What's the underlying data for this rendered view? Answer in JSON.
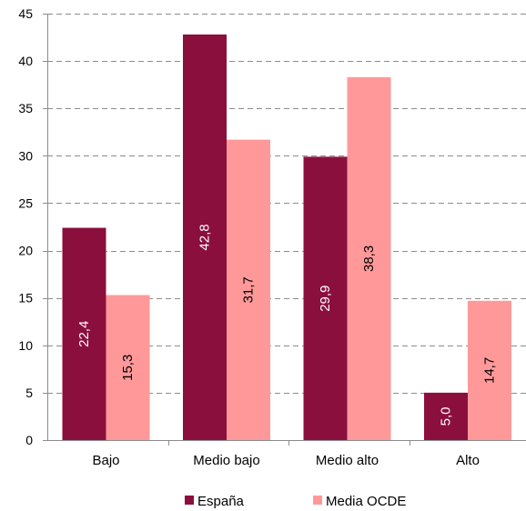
{
  "chart_data": {
    "type": "bar",
    "categories": [
      "Bajo",
      "Medio bajo",
      "Medio alto",
      "Alto"
    ],
    "series": [
      {
        "name": "España",
        "values": [
          22.4,
          42.8,
          29.9,
          5.0
        ],
        "labels": [
          "22,4",
          "42,8",
          "29,9",
          "5,0"
        ],
        "color": "#8b0f3d",
        "label_color": "#ffffff"
      },
      {
        "name": "Media OCDE",
        "values": [
          15.3,
          31.7,
          38.3,
          14.7
        ],
        "labels": [
          "15,3",
          "31,7",
          "38,3",
          "14,7"
        ],
        "color": "#ff9999",
        "label_color": "#000000"
      }
    ],
    "title": "",
    "xlabel": "",
    "ylabel": "",
    "ylim": [
      0,
      45
    ],
    "yticks": [
      0,
      5,
      10,
      15,
      20,
      25,
      30,
      35,
      40,
      45
    ],
    "grid": "horizontal dashed",
    "legend_position": "bottom"
  }
}
